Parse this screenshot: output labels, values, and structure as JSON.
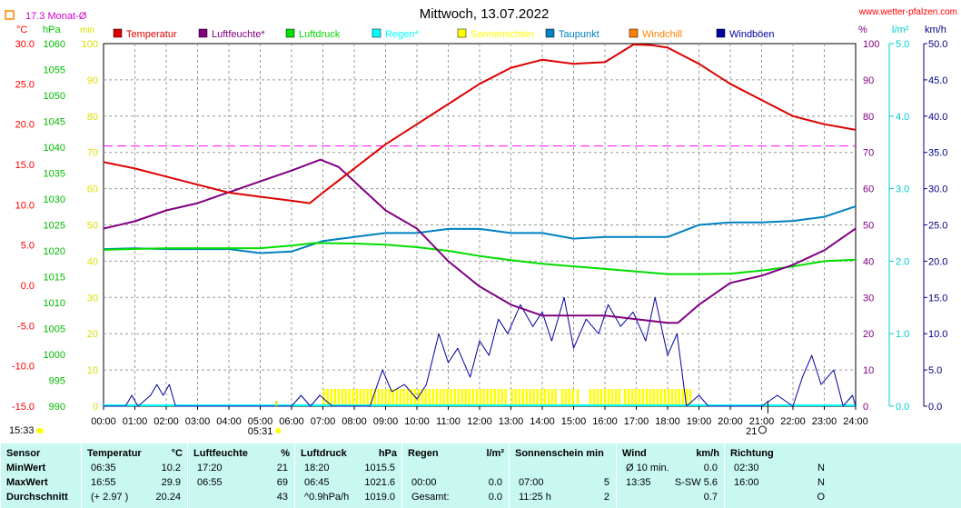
{
  "header": {
    "title": "Mittwoch, 13.07.2022",
    "website": "www.wetter-pfalzen.com",
    "monthly_avg": "17.3 Monat-Ø",
    "unit_temp": "°C",
    "unit_pressure": "hPa",
    "unit_minutes": "min",
    "unit_percent": "%",
    "unit_rain": "l/m²",
    "unit_wind": "km/h"
  },
  "legend": [
    {
      "label": "Temperatur",
      "color": "#dd0000"
    },
    {
      "label": "Luftfeuchte*",
      "color": "#800080"
    },
    {
      "label": "Luftdruck",
      "color": "#00dd00"
    },
    {
      "label": "Regen*",
      "color": "#00ffff"
    },
    {
      "label": "Sonnenschein",
      "color": "#ffff00"
    },
    {
      "label": "Taupunkt",
      "color": "#0080c0"
    },
    {
      "label": "Windchill",
      "color": "#ff8000"
    },
    {
      "label": "Windböen",
      "color": "#0000a0"
    }
  ],
  "axes": {
    "temp": [
      "30.0",
      "25.0",
      "20.0",
      "15.0",
      "10.0",
      "5.0",
      "0.0",
      "-5.0",
      "-10.0",
      "-15.0"
    ],
    "pressure": [
      "1060",
      "1055",
      "1050",
      "1045",
      "1040",
      "1035",
      "1030",
      "1025",
      "1020",
      "1015",
      "1010",
      "1005",
      "1000",
      "995",
      "990"
    ],
    "minutes": [
      "100",
      "90",
      "80",
      "70",
      "60",
      "50",
      "40",
      "30",
      "20",
      "10",
      "0"
    ],
    "percent": [
      "100",
      "90",
      "80",
      "70",
      "60",
      "50",
      "40",
      "30",
      "20",
      "10",
      "0"
    ],
    "rain": [
      "5.0",
      "4.0",
      "3.0",
      "2.0",
      "1.0",
      "0.0"
    ],
    "wind": [
      "50.0",
      "45.0",
      "40.0",
      "35.0",
      "30.0",
      "25.0",
      "20.0",
      "15.0",
      "10.0",
      "5.0",
      "0.0"
    ],
    "times": [
      "00:00",
      "01:00",
      "02:00",
      "03:00",
      "04:00",
      "05:00",
      "06:00",
      "07:00",
      "08:00",
      "09:00",
      "10:00",
      "11:00",
      "12:00",
      "13:00",
      "14:00",
      "15:00",
      "16:00",
      "17:00",
      "18:00",
      "19:00",
      "20:00",
      "21:00",
      "22:00",
      "23:00",
      "24:00"
    ],
    "sunrise": "05:31",
    "sunset": "21",
    "moonrise": "15:33"
  },
  "chart_data": {
    "type": "line",
    "x_unit": "hours",
    "monthly_avg_temp": 17.3,
    "series": [
      {
        "name": "Temperatur",
        "axis": "°C",
        "color": "#dd0000",
        "x": [
          0,
          1,
          2,
          3,
          4,
          5,
          6,
          6.58,
          7,
          8,
          9,
          10,
          11,
          12,
          13,
          14,
          15,
          16,
          16.92,
          17.5,
          18,
          19,
          20,
          21,
          22,
          23,
          24
        ],
        "values": [
          15.3,
          14.5,
          13.5,
          12.5,
          11.5,
          11.0,
          10.5,
          10.2,
          11.5,
          14.5,
          17.5,
          20.0,
          22.5,
          25.0,
          27.0,
          28.0,
          27.5,
          27.7,
          29.9,
          29.8,
          29.5,
          27.5,
          25.0,
          23.0,
          21.0,
          20.0,
          19.3
        ]
      },
      {
        "name": "Luftfeuchte*",
        "axis": "%",
        "color": "#800080",
        "x": [
          0,
          1,
          2,
          3,
          4,
          5,
          6,
          6.92,
          7.5,
          8,
          9,
          10,
          11,
          12,
          13,
          14,
          15,
          16,
          17,
          18,
          18.33,
          19,
          20,
          21,
          22,
          23,
          24
        ],
        "values": [
          49,
          51,
          54,
          56,
          59,
          62,
          65,
          68,
          66,
          62,
          54,
          49,
          40,
          33,
          28,
          25,
          25,
          25,
          24,
          23,
          23,
          28,
          34,
          36,
          39,
          43,
          49
        ]
      },
      {
        "name": "Luftdruck",
        "axis": "hPa",
        "color": "#00dd00",
        "x": [
          0,
          2,
          4,
          5,
          6,
          6.75,
          8,
          9,
          10,
          11,
          12,
          13,
          14,
          15,
          16,
          17,
          18,
          18.33,
          19,
          20,
          21,
          22,
          23,
          24
        ],
        "values": [
          1020.2,
          1020.5,
          1020.5,
          1020.5,
          1021.0,
          1021.5,
          1021.4,
          1021.2,
          1020.7,
          1020.0,
          1019.0,
          1018.2,
          1017.5,
          1017.0,
          1016.5,
          1016.0,
          1015.5,
          1015.5,
          1015.5,
          1015.6,
          1016.2,
          1017.0,
          1018.0,
          1018.3
        ]
      },
      {
        "name": "Taupunkt",
        "axis": "°C",
        "color": "#0080c0",
        "x": [
          0,
          1,
          2,
          3,
          4,
          5,
          6,
          7,
          8,
          9,
          10,
          11,
          12,
          13,
          14,
          15,
          16,
          17,
          18,
          19,
          20,
          21,
          22,
          23,
          24
        ],
        "values": [
          4.5,
          4.6,
          4.5,
          4.5,
          4.5,
          4.0,
          4.2,
          5.5,
          6.0,
          6.5,
          6.5,
          7.0,
          7.0,
          6.5,
          6.5,
          5.8,
          6.0,
          6.0,
          6.0,
          7.5,
          7.8,
          7.8,
          8.0,
          8.5,
          9.8
        ]
      },
      {
        "name": "Windböen",
        "axis": "km/h",
        "color": "#0000a0",
        "x": [
          0,
          0.7,
          0.9,
          1.1,
          1.5,
          1.7,
          1.9,
          2.1,
          2.3,
          2.5,
          6.0,
          6.3,
          6.6,
          6.9,
          7.3,
          8.5,
          8.9,
          9.2,
          9.6,
          10.0,
          10.3,
          10.7,
          11.0,
          11.3,
          11.7,
          12.0,
          12.3,
          12.6,
          12.9,
          13.3,
          13.7,
          14.0,
          14.3,
          14.7,
          15.0,
          15.4,
          15.8,
          16.1,
          16.5,
          16.9,
          17.3,
          17.6,
          18.0,
          18.3,
          18.6,
          19.0,
          19.3,
          19.6,
          20.0,
          21.0,
          21.5,
          22.0,
          22.3,
          22.6,
          22.9,
          23.3,
          23.6,
          23.9,
          24.0
        ],
        "values": [
          0,
          0,
          1.5,
          0,
          1.5,
          3,
          1.5,
          3,
          0,
          0,
          0,
          1.5,
          0,
          1.5,
          0,
          0,
          5,
          2,
          3,
          1,
          3,
          10,
          6,
          8,
          4,
          9,
          7,
          12,
          10,
          14,
          11,
          13,
          9,
          15,
          8,
          12,
          10,
          14,
          11,
          13,
          9,
          15,
          7,
          10,
          0,
          1.5,
          0,
          0,
          0,
          0,
          1.5,
          0,
          4,
          7,
          3,
          5,
          0,
          1.5,
          0
        ]
      }
    ],
    "sunshine_intervals": [
      [
        7.0,
        12.9
      ],
      [
        13.0,
        14.4
      ],
      [
        14.6,
        15.0
      ],
      [
        15.1,
        15.2
      ],
      [
        15.5,
        16.5
      ],
      [
        16.6,
        18.8
      ]
    ]
  },
  "stats": {
    "columns": [
      {
        "key": "sensor",
        "title": "Sensor",
        "unit": "",
        "rows": [
          {
            "time": "MinWert",
            "value": ""
          },
          {
            "time": "MaxWert",
            "value": ""
          },
          {
            "time": "Durchschnitt",
            "value": ""
          }
        ]
      },
      {
        "key": "temperature",
        "title": "Temperatur",
        "unit": "°C",
        "rows": [
          {
            "time": "06:35",
            "value": "10.2"
          },
          {
            "time": "16:55",
            "value": "29.9"
          },
          {
            "time": "(+ 2.97 )",
            "value": "20.24"
          }
        ]
      },
      {
        "key": "humidity",
        "title": "Luftfeuchte",
        "unit": "%",
        "rows": [
          {
            "time": "17:20",
            "value": "21"
          },
          {
            "time": "06:55",
            "value": "69"
          },
          {
            "time": "",
            "value": "43"
          }
        ]
      },
      {
        "key": "pressure",
        "title": "Luftdruck",
        "unit": "hPa",
        "rows": [
          {
            "time": "18:20",
            "value": "1015.5"
          },
          {
            "time": "06:45",
            "value": "1021.6"
          },
          {
            "time": "^0.9hPa/h",
            "value": "1019.0"
          }
        ]
      },
      {
        "key": "rain",
        "title": "Regen",
        "unit": "l/m²",
        "rows": [
          {
            "time": "",
            "value": ""
          },
          {
            "time": "00:00",
            "value": "0.0"
          },
          {
            "time": "Gesamt:",
            "value": "0.0"
          }
        ]
      },
      {
        "key": "sunshine",
        "title": "Sonnenschein min",
        "unit": "",
        "rows": [
          {
            "time": "",
            "value": ""
          },
          {
            "time": "07:00",
            "value": "5"
          },
          {
            "time": "11:25 h",
            "value": "2"
          }
        ]
      },
      {
        "key": "wind",
        "title": "Wind",
        "unit": "km/h",
        "rows": [
          {
            "time": "Ø 10 min.",
            "value": "0.0"
          },
          {
            "time": "13:35",
            "value": "S-SW 5.6"
          },
          {
            "time": "",
            "value": "0.7"
          }
        ]
      },
      {
        "key": "direction",
        "title": "Richtung",
        "unit": "",
        "rows": [
          {
            "time": "02:30",
            "value": "N"
          },
          {
            "time": "16:00",
            "value": "N"
          },
          {
            "time": "",
            "value": "O"
          }
        ]
      }
    ]
  }
}
